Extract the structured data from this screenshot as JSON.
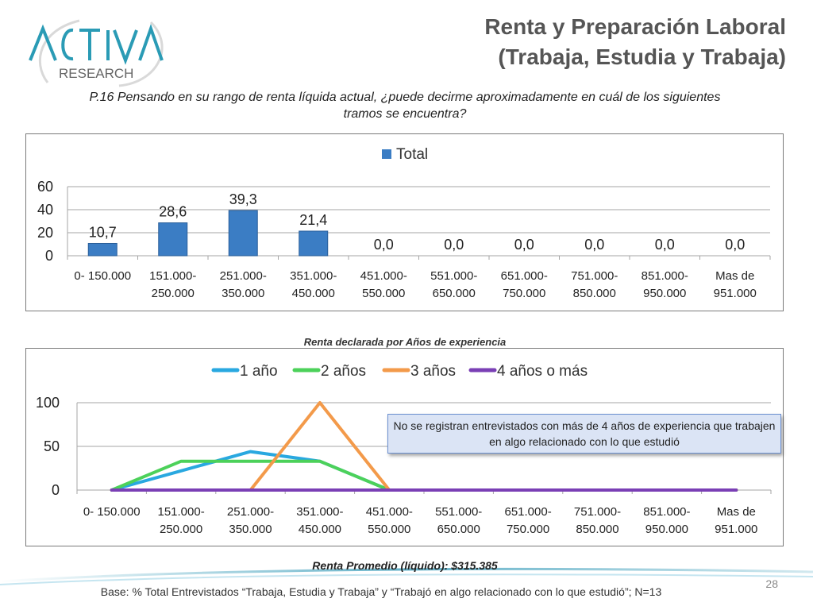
{
  "logo": {
    "line1": "ACTIVA",
    "line2": "RESEARCH"
  },
  "header": {
    "title_line1": "Renta y Preparación Laboral",
    "title_line2": "(Trabaja, Estudia y Trabaja)"
  },
  "question": "P.16  Pensando en su rango de renta líquida actual, ¿puede decirme aproximadamente en cuál de los siguientes tramos se encuentra?",
  "line_caption": "Renta declarada por Años de experiencia",
  "note": "No se registran entrevistados con más de 4 años de experiencia que trabajen en algo relacionado con lo que estudió",
  "average": "Renta Promedio (líquido): $315.385",
  "base": "Base: % Total Entrevistados “Trabaja, Estudia y Trabaja” y “Trabajó en algo relacionado con lo que estudió”; N=13",
  "page_number": "28",
  "colors": {
    "bar": "#3b7dc4",
    "s1": "#29a8e0",
    "s2": "#4cd15a",
    "s3": "#f39a4a",
    "s4": "#7a3fb5"
  },
  "chart_data": [
    {
      "type": "bar",
      "categories": [
        [
          "0- 150.000"
        ],
        [
          "151.000-",
          "250.000"
        ],
        [
          "251.000-",
          "350.000"
        ],
        [
          "351.000-",
          "450.000"
        ],
        [
          "451.000-",
          "550.000"
        ],
        [
          "551.000-",
          "650.000"
        ],
        [
          "651.000-",
          "750.000"
        ],
        [
          "751.000-",
          "850.000"
        ],
        [
          "851.000-",
          "950.000"
        ],
        [
          "Mas de",
          "951.000"
        ]
      ],
      "series": [
        {
          "name": "Total",
          "values": [
            10.7,
            28.6,
            39.3,
            21.4,
            0.0,
            0.0,
            0.0,
            0.0,
            0.0,
            0.0
          ]
        }
      ],
      "data_labels": [
        "10,7",
        "28,6",
        "39,3",
        "21,4",
        "0,0",
        "0,0",
        "0,0",
        "0,0",
        "0,0",
        "0,0"
      ],
      "ylim": [
        0,
        60
      ],
      "yticks": [
        0,
        20,
        40,
        60
      ],
      "grid": true,
      "legend": "top-center"
    },
    {
      "type": "line",
      "categories": [
        [
          "0- 150.000"
        ],
        [
          "151.000-",
          "250.000"
        ],
        [
          "251.000-",
          "350.000"
        ],
        [
          "351.000-",
          "450.000"
        ],
        [
          "451.000-",
          "550.000"
        ],
        [
          "551.000-",
          "650.000"
        ],
        [
          "651.000-",
          "750.000"
        ],
        [
          "751.000-",
          "850.000"
        ],
        [
          "851.000-",
          "950.000"
        ],
        [
          "Mas de",
          "951.000"
        ]
      ],
      "series": [
        {
          "name": "1 año",
          "values": [
            0,
            22,
            44,
            33,
            0,
            0,
            0,
            0,
            0,
            0
          ]
        },
        {
          "name": "2 años",
          "values": [
            0,
            33,
            33,
            33,
            0,
            0,
            0,
            0,
            0,
            0
          ]
        },
        {
          "name": "3 años",
          "values": [
            0,
            0,
            0,
            100,
            0,
            0,
            0,
            0,
            0,
            0
          ]
        },
        {
          "name": "4 años o más",
          "values": [
            0,
            0,
            0,
            0,
            0,
            0,
            0,
            0,
            0,
            0
          ]
        }
      ],
      "ylim": [
        0,
        100
      ],
      "yticks": [
        0,
        50,
        100
      ],
      "grid": true,
      "legend": "top-center"
    }
  ]
}
